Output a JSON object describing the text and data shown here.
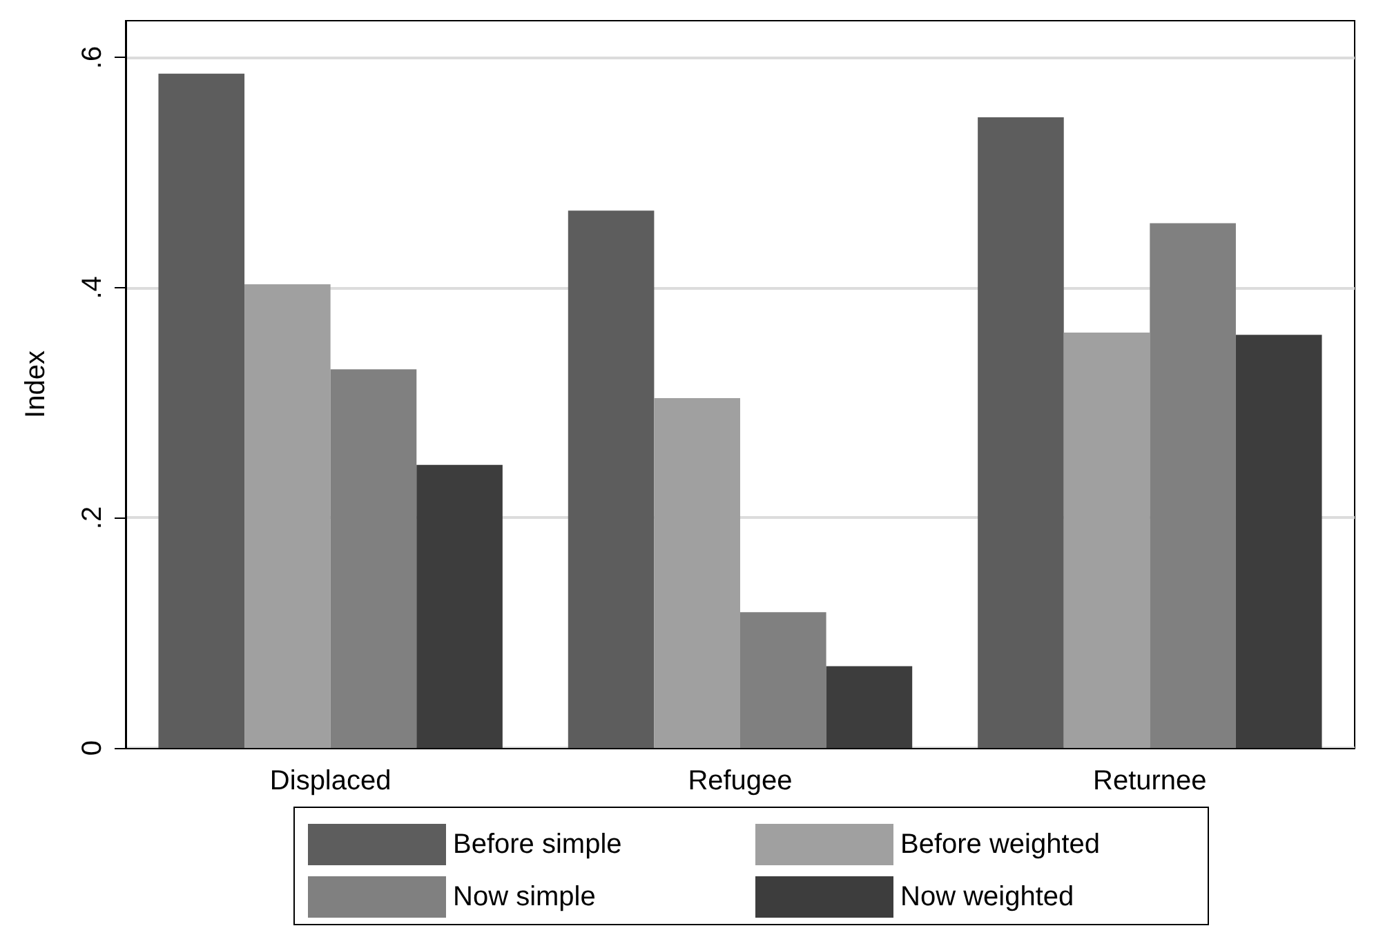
{
  "chart_data": {
    "type": "bar",
    "ylabel": "Index",
    "categories": [
      "Displaced",
      "Refugee",
      "Returnee"
    ],
    "series": [
      {
        "name": "Before simple",
        "color": "#5d5d5d",
        "values": [
          0.586,
          0.467,
          0.548
        ]
      },
      {
        "name": "Before weighted",
        "color": "#a0a0a0",
        "values": [
          0.403,
          0.304,
          0.361
        ]
      },
      {
        "name": "Now simple",
        "color": "#808080",
        "values": [
          0.329,
          0.118,
          0.456
        ]
      },
      {
        "name": "Now weighted",
        "color": "#3d3d3d",
        "values": [
          0.246,
          0.071,
          0.359
        ]
      }
    ],
    "ylim": [
      0,
      0.632
    ],
    "yticks": [
      0,
      {
        "value": 0.2,
        "label": ".2"
      },
      {
        "value": 0.4,
        "label": ".4"
      },
      {
        "value": 0.6,
        "label": ".6"
      }
    ],
    "grid": "y",
    "legend": "bottom"
  }
}
